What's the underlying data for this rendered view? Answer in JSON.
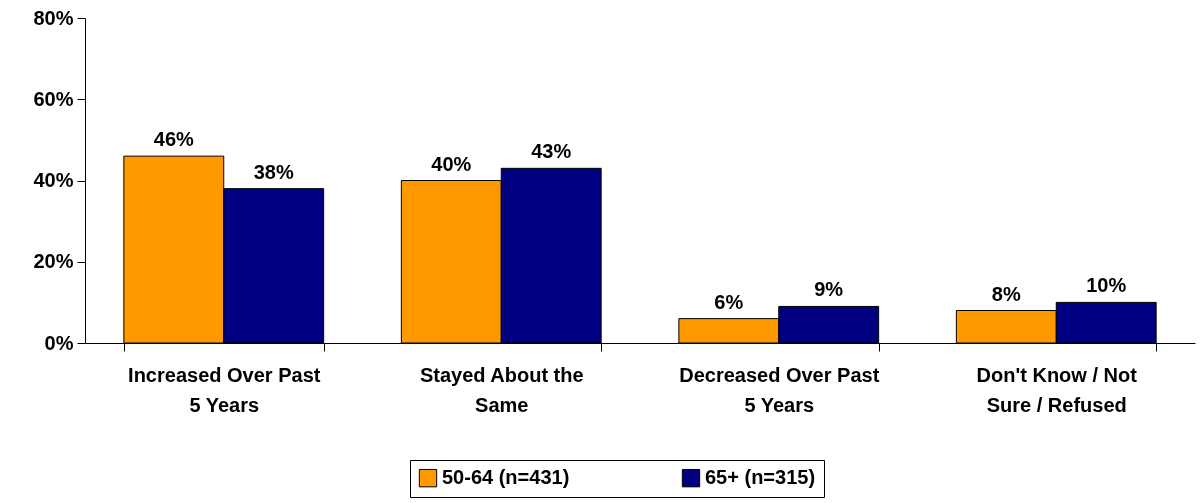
{
  "chart_data": {
    "type": "bar",
    "categories": [
      "Increased Over Past 5 Years",
      "Stayed About the Same",
      "Decreased Over Past 5 Years",
      "Don't Know / Not Sure / Refused"
    ],
    "series": [
      {
        "name": "50-64 (n=431)",
        "color": "#ff9900",
        "values": [
          46,
          40,
          6,
          8
        ],
        "value_labels": [
          "46%",
          "40%",
          "6%",
          "8%"
        ]
      },
      {
        "name": "65+ (n=315)",
        "color": "#000080",
        "values": [
          38,
          43,
          9,
          10
        ],
        "value_labels": [
          "38%",
          "43%",
          "9%",
          "10%"
        ]
      }
    ],
    "ylim": [
      0,
      80
    ],
    "yticks": [
      {
        "value": 0,
        "label": "0%"
      },
      {
        "value": 20,
        "label": "20%"
      },
      {
        "value": 40,
        "label": "40%"
      },
      {
        "value": 60,
        "label": "60%"
      },
      {
        "value": 80,
        "label": "80%"
      }
    ],
    "grid": false,
    "legend": "bottom"
  }
}
